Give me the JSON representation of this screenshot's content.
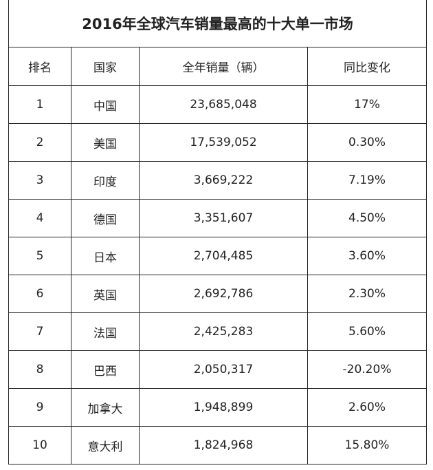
{
  "table": {
    "title": "2016年全球汽车销量最高的十大单一市场",
    "header": [
      "排名",
      "国家",
      "全年销量（辆）",
      "同比变化"
    ],
    "rows": [
      [
        "1",
        "中国",
        "23,685,048",
        "17%"
      ],
      [
        "2",
        "美国",
        "17,539,052",
        "0.30%"
      ],
      [
        "3",
        "印度",
        "3,669,222",
        "7.19%"
      ],
      [
        "4",
        "德国",
        "3,351,607",
        "4.50%"
      ],
      [
        "5",
        "日本",
        "2,704,485",
        "3.60%"
      ],
      [
        "6",
        "英国",
        "2,692,786",
        "2.30%"
      ],
      [
        "7",
        "法国",
        "2,425,283",
        "5.60%"
      ],
      [
        "8",
        "巴西",
        "2,050,317",
        "-20.20%"
      ],
      [
        "9",
        "加拿大",
        "1,948,899",
        "2.60%"
      ],
      [
        "10",
        "意大利",
        "1,824,968",
        "15.80%"
      ]
    ]
  }
}
